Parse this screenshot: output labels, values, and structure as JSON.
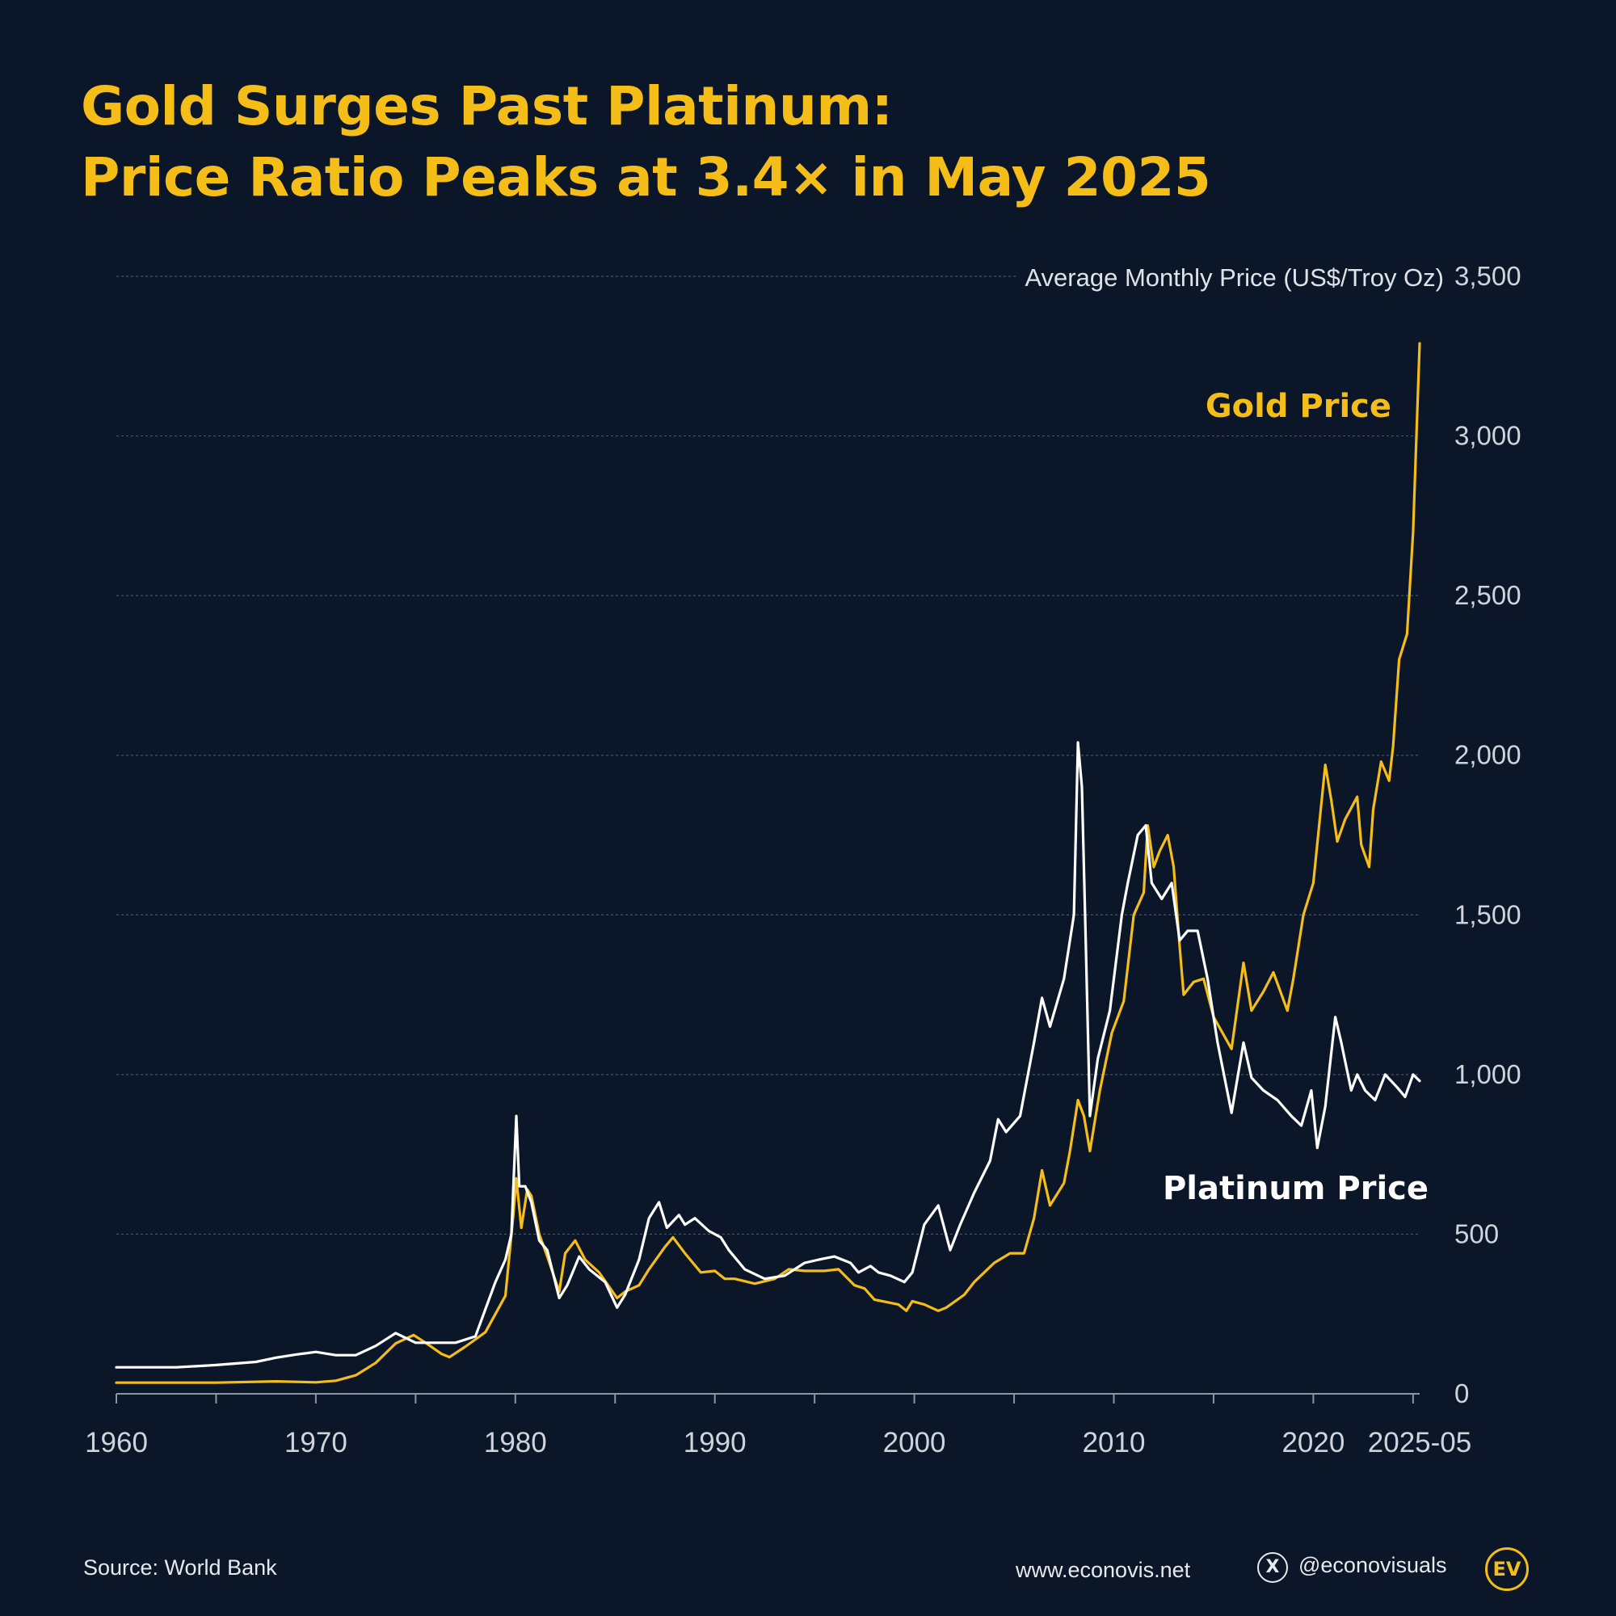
{
  "title": {
    "line1": "Gold Surges Past Platinum:",
    "line2": "Price Ratio Peaks at 3.4× in May 2025"
  },
  "footer": {
    "source": "Source: World Bank",
    "website": "www.econovis.net",
    "x_icon": "x-logo-icon",
    "x_glyph": "X",
    "handle": "@econovisuals",
    "logo_text": "EV"
  },
  "colors": {
    "background": "#0b1628",
    "gold": "#f5bd17",
    "platinum": "#ffffff",
    "grid": "#4a5566",
    "axis_text": "#cfd4dc"
  },
  "chart_data": {
    "type": "line",
    "title": "Gold Surges Past Platinum: Price Ratio Peaks at 3.4× in May 2025",
    "ylabel": "Average Monthly Price (US$/Troy Oz)",
    "xlabel": "",
    "xlim": [
      1960,
      2025.33
    ],
    "ylim": [
      0,
      3500
    ],
    "yticks": [
      0,
      500,
      1000,
      1500,
      2000,
      2500,
      3000,
      3500
    ],
    "ytick_labels": [
      "0",
      "500",
      "1,000",
      "1,500",
      "2,000",
      "2,500",
      "3,000",
      "3,500"
    ],
    "xticks": [
      1960,
      1965,
      1970,
      1975,
      1980,
      1985,
      1990,
      1995,
      2000,
      2005,
      2010,
      2015,
      2020,
      2025
    ],
    "xtick_labels": [
      {
        "value": 1960,
        "label": "1960"
      },
      {
        "value": 1970,
        "label": "1970"
      },
      {
        "value": 1980,
        "label": "1980"
      },
      {
        "value": 1990,
        "label": "1990"
      },
      {
        "value": 2000,
        "label": "2000"
      },
      {
        "value": 2010,
        "label": "2010"
      },
      {
        "value": 2020,
        "label": "2020"
      },
      {
        "value": 2025.33,
        "label": "2025-05"
      }
    ],
    "grid": true,
    "series": [
      {
        "name": "Gold Price",
        "color": "#f5bd17",
        "x": [
          1960,
          1965,
          1968,
          1970,
          1971,
          1972,
          1973,
          1974,
          1974.9,
          1975.5,
          1976.3,
          1976.7,
          1977.5,
          1978.5,
          1979.5,
          1979.9,
          1980.05,
          1980.3,
          1980.6,
          1980.8,
          1981.2,
          1981.6,
          1982.2,
          1982.5,
          1983,
          1983.5,
          1984.2,
          1985.1,
          1985.5,
          1986.2,
          1986.7,
          1987.5,
          1987.9,
          1988.5,
          1989.3,
          1990,
          1990.5,
          1991,
          1992,
          1993,
          1993.7,
          1994.5,
          1995.5,
          1996.2,
          1997,
          1997.5,
          1998,
          1999.2,
          1999.6,
          1999.9,
          2000.5,
          2001.2,
          2001.6,
          2002.5,
          2003,
          2004,
          2004.8,
          2005.5,
          2006,
          2006.4,
          2006.8,
          2007.5,
          2007.8,
          2008.2,
          2008.5,
          2008.8,
          2009.3,
          2009.9,
          2010.5,
          2011,
          2011.5,
          2011.7,
          2012,
          2012.3,
          2012.7,
          2013,
          2013.3,
          2013.5,
          2014,
          2014.5,
          2015,
          2015.9,
          2016.5,
          2016.9,
          2017.5,
          2018,
          2018.7,
          2019,
          2019.5,
          2020,
          2020.6,
          2020.9,
          2021.2,
          2021.6,
          2022.2,
          2022.4,
          2022.8,
          2023,
          2023.4,
          2023.8,
          2024,
          2024.3,
          2024.7,
          2025,
          2025.17,
          2025.33
        ],
        "values": [
          35,
          35,
          39,
          36,
          41,
          58,
          97,
          158,
          184,
          160,
          125,
          115,
          148,
          193,
          307,
          560,
          675,
          520,
          640,
          620,
          500,
          430,
          320,
          440,
          480,
          420,
          380,
          300,
          320,
          340,
          390,
          460,
          490,
          440,
          380,
          385,
          360,
          360,
          345,
          360,
          390,
          385,
          385,
          390,
          340,
          330,
          295,
          280,
          260,
          290,
          280,
          260,
          270,
          310,
          350,
          410,
          440,
          440,
          550,
          700,
          590,
          660,
          760,
          920,
          870,
          760,
          950,
          1130,
          1230,
          1500,
          1570,
          1780,
          1650,
          1700,
          1750,
          1650,
          1400,
          1250,
          1290,
          1300,
          1180,
          1080,
          1350,
          1200,
          1260,
          1320,
          1200,
          1300,
          1500,
          1600,
          1970,
          1860,
          1730,
          1800,
          1870,
          1720,
          1650,
          1830,
          1980,
          1920,
          2030,
          2300,
          2380,
          2700,
          3000,
          3290
        ]
      },
      {
        "name": "Platinum Price",
        "color": "#ffffff",
        "x": [
          1960,
          1963,
          1965,
          1967,
          1968,
          1969,
          1970,
          1971,
          1972,
          1973,
          1974,
          1975,
          1976,
          1977,
          1978,
          1979,
          1979.5,
          1979.8,
          1980.05,
          1980.2,
          1980.5,
          1980.8,
          1981.2,
          1981.6,
          1982.2,
          1982.6,
          1983.2,
          1983.7,
          1984.5,
          1985.1,
          1985.5,
          1986.2,
          1986.7,
          1987.2,
          1987.6,
          1988.2,
          1988.5,
          1989,
          1989.7,
          1990.3,
          1990.7,
          1991.5,
          1992.5,
          1993.5,
          1994.5,
          1995.2,
          1996,
          1996.8,
          1997.2,
          1997.8,
          1998.2,
          1998.8,
          1999.5,
          1999.9,
          2000.5,
          2001.2,
          2001.8,
          2002.3,
          2003,
          2003.8,
          2004.2,
          2004.6,
          2005.3,
          2006,
          2006.4,
          2006.8,
          2007.5,
          2008,
          2008.2,
          2008.4,
          2008.6,
          2008.8,
          2009.2,
          2009.8,
          2010.4,
          2010.7,
          2011.2,
          2011.6,
          2011.9,
          2012.4,
          2012.9,
          2013.3,
          2013.7,
          2014.2,
          2014.7,
          2015.2,
          2015.9,
          2016.5,
          2016.9,
          2017.5,
          2018.2,
          2018.9,
          2019.4,
          2019.9,
          2020.2,
          2020.6,
          2021.1,
          2021.4,
          2021.9,
          2022.2,
          2022.6,
          2023.1,
          2023.6,
          2024.2,
          2024.6,
          2025,
          2025.33
        ],
        "values": [
          83,
          83,
          90,
          100,
          113,
          123,
          131,
          121,
          121,
          150,
          190,
          160,
          160,
          160,
          180,
          350,
          420,
          500,
          870,
          650,
          650,
          600,
          480,
          450,
          300,
          340,
          430,
          390,
          350,
          270,
          310,
          420,
          550,
          600,
          520,
          560,
          530,
          550,
          510,
          490,
          450,
          390,
          360,
          370,
          410,
          420,
          430,
          410,
          380,
          400,
          380,
          370,
          350,
          380,
          530,
          590,
          450,
          530,
          630,
          730,
          860,
          820,
          870,
          1100,
          1240,
          1150,
          1300,
          1500,
          2040,
          1900,
          1400,
          870,
          1050,
          1200,
          1500,
          1600,
          1750,
          1780,
          1600,
          1550,
          1600,
          1420,
          1450,
          1450,
          1300,
          1100,
          880,
          1100,
          990,
          950,
          920,
          870,
          840,
          950,
          770,
          900,
          1180,
          1100,
          950,
          1000,
          950,
          920,
          1000,
          960,
          930,
          1000,
          980
        ]
      }
    ],
    "annotations": [
      {
        "text": "Gold Price",
        "series": "Gold Price"
      },
      {
        "text": "Platinum Price",
        "series": "Platinum Price"
      }
    ]
  }
}
